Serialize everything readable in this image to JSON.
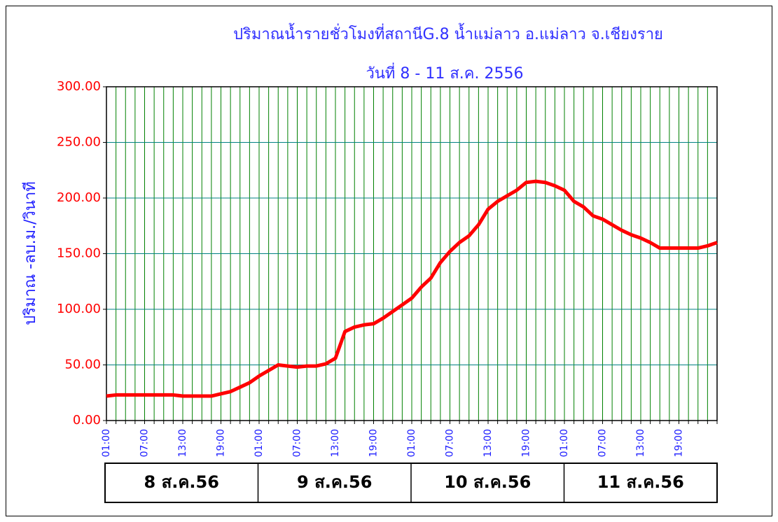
{
  "chart_data": {
    "type": "line",
    "title": "ปริมาณน้ำรายชั่วโมงที่สถานีG.8 น้ำแม่ลาว อ.แม่ลาว  จ.เชียงราย",
    "subtitle": "วันที่ 8 - 11 ส.ค. 2556",
    "y_label": "ปริมาณ -ลบ.ม./วินาที",
    "categories": [
      "01:00",
      null,
      null,
      null,
      "07:00",
      null,
      null,
      null,
      "13:00",
      null,
      null,
      null,
      "19:00",
      null,
      null,
      null,
      "01:00",
      null,
      null,
      null,
      "07:00",
      null,
      null,
      null,
      "13:00",
      null,
      null,
      null,
      "19:00",
      null,
      null,
      null,
      "01:00",
      null,
      null,
      null,
      "07:00",
      null,
      null,
      null,
      "13:00",
      null,
      null,
      null,
      "19:00",
      null,
      null,
      null,
      "01:00",
      null,
      null,
      null,
      "07:00",
      null,
      null,
      null,
      "13:00",
      null,
      null,
      null,
      "19:00",
      null,
      null,
      null,
      null
    ],
    "x_groups": [
      "8 ส.ค.56",
      "9 ส.ค.56",
      "10 ส.ค.56",
      "11 ส.ค.56"
    ],
    "series": [
      {
        "name": "ปริมาณน้ำ",
        "color": "#ff0000",
        "values": [
          22,
          23,
          23,
          23,
          23,
          23,
          23,
          23,
          22,
          22,
          22,
          22,
          24,
          26,
          30,
          34,
          40,
          45,
          50,
          49,
          48,
          49,
          49,
          51,
          56,
          80,
          84,
          86,
          87,
          92,
          98,
          104,
          110,
          120,
          128,
          142,
          152,
          160,
          166,
          176,
          190,
          197,
          202,
          207,
          214,
          215,
          214,
          211,
          207,
          197,
          192,
          184,
          181,
          176,
          171,
          167,
          164,
          160,
          155,
          155,
          155,
          155,
          155,
          157,
          160
        ]
      }
    ],
    "ylim": [
      0,
      300
    ],
    "yticks": [
      {
        "value": 0,
        "label": "0.00"
      },
      {
        "value": 50,
        "label": "50.00"
      },
      {
        "value": 100,
        "label": "100.00"
      },
      {
        "value": 150,
        "label": "150.00"
      },
      {
        "value": 200,
        "label": "200.00"
      },
      {
        "value": 250,
        "label": "250.00"
      },
      {
        "value": 300,
        "label": "300.00"
      }
    ],
    "grid": true
  }
}
